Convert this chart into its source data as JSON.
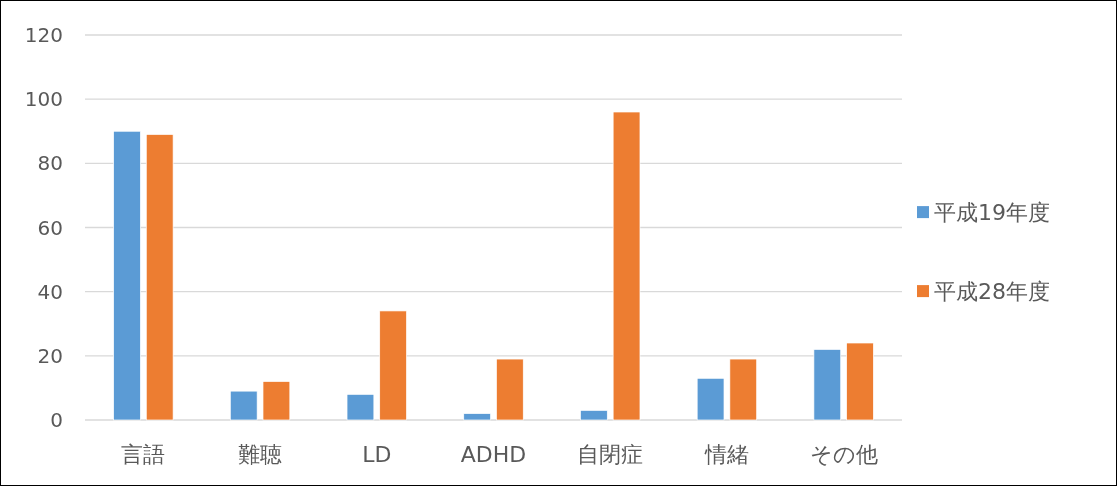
{
  "chart_data": {
    "type": "bar",
    "categories": [
      "言語",
      "難聴",
      "LD",
      "ADHD",
      "自閉症",
      "情緒",
      "その他"
    ],
    "series": [
      {
        "name": "平成19年度",
        "color": "#5b9bd5",
        "values": [
          90,
          9,
          8,
          2,
          3,
          13,
          22
        ]
      },
      {
        "name": "平成28年度",
        "color": "#ed7d31",
        "values": [
          89,
          12,
          34,
          19,
          96,
          19,
          24
        ]
      }
    ],
    "ylim": [
      0,
      120
    ],
    "yticks": [
      0,
      20,
      40,
      60,
      80,
      100,
      120
    ],
    "grid": "y",
    "legend": "right"
  }
}
